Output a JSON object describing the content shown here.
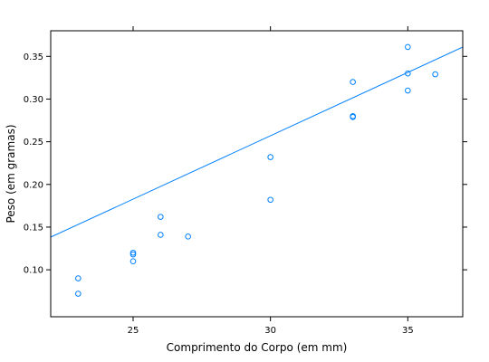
{
  "chart_data": {
    "type": "scatter",
    "title": "",
    "xlabel": "Comprimento do Corpo (em mm)",
    "ylabel": "Peso (em gramas)",
    "xlim": [
      22,
      37
    ],
    "ylim": [
      0.045,
      0.38
    ],
    "x_ticks": [
      25,
      30,
      35
    ],
    "x_tick_labels": [
      "25",
      "30",
      "35"
    ],
    "y_ticks": [
      0.1,
      0.15,
      0.2,
      0.25,
      0.3,
      0.35
    ],
    "y_tick_labels": [
      "0.10",
      "0.15",
      "0.20",
      "0.25",
      "0.30",
      "0.35"
    ],
    "grid": false,
    "colors": {
      "points": "#0080ff",
      "line": "#0080ff",
      "frame": "#000000"
    },
    "points": [
      {
        "x": 23,
        "y": 0.072
      },
      {
        "x": 23,
        "y": 0.09
      },
      {
        "x": 25,
        "y": 0.11
      },
      {
        "x": 25,
        "y": 0.118
      },
      {
        "x": 25,
        "y": 0.12
      },
      {
        "x": 26,
        "y": 0.141
      },
      {
        "x": 26,
        "y": 0.162
      },
      {
        "x": 27,
        "y": 0.139
      },
      {
        "x": 30,
        "y": 0.182
      },
      {
        "x": 30,
        "y": 0.232
      },
      {
        "x": 33,
        "y": 0.279
      },
      {
        "x": 33,
        "y": 0.28
      },
      {
        "x": 33,
        "y": 0.32
      },
      {
        "x": 35,
        "y": 0.31
      },
      {
        "x": 35,
        "y": 0.33
      },
      {
        "x": 35,
        "y": 0.361
      },
      {
        "x": 36,
        "y": 0.329
      }
    ],
    "regression_line": {
      "intercept": -0.1882,
      "slope": 0.01484
    }
  }
}
